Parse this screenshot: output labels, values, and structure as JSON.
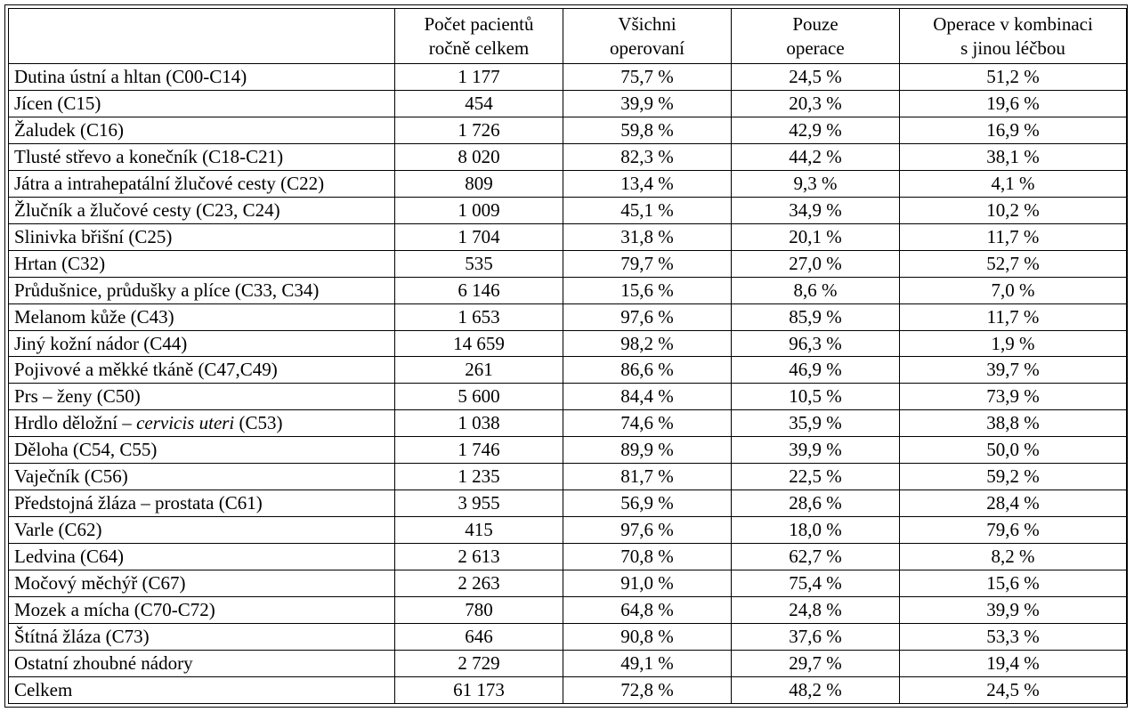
{
  "headers": [
    {
      "lines": [
        ""
      ]
    },
    {
      "lines": [
        "Počet pacientů",
        "ročně celkem"
      ]
    },
    {
      "lines": [
        "Všichni",
        "operovaní"
      ]
    },
    {
      "lines": [
        "Pouze",
        "operace"
      ]
    },
    {
      "lines": [
        "Operace v kombinaci",
        "s jinou léčbou"
      ]
    }
  ],
  "rows": [
    {
      "name": "Dutina ústní a hltan (C00-C14)",
      "patients": "1 177",
      "all_operated": "75,7 %",
      "surgery_only": "24,5 %",
      "combined": "51,2 %"
    },
    {
      "name": "Jícen (C15)",
      "patients": "454",
      "all_operated": "39,9 %",
      "surgery_only": "20,3 %",
      "combined": "19,6 %"
    },
    {
      "name": "Žaludek (C16)",
      "patients": "1 726",
      "all_operated": "59,8 %",
      "surgery_only": "42,9 %",
      "combined": "16,9 %"
    },
    {
      "name": "Tlusté střevo a konečník (C18-C21)",
      "patients": "8 020",
      "all_operated": "82,3 %",
      "surgery_only": "44,2 %",
      "combined": "38,1 %"
    },
    {
      "name": "Játra a intrahepatální žlučové cesty (C22)",
      "patients": "809",
      "all_operated": "13,4 %",
      "surgery_only": "9,3 %",
      "combined": "4,1 %"
    },
    {
      "name": "Žlučník a žlučové cesty (C23, C24)",
      "patients": "1 009",
      "all_operated": "45,1 %",
      "surgery_only": "34,9 %",
      "combined": "10,2 %"
    },
    {
      "name": "Slinivka břišní (C25)",
      "patients": "1 704",
      "all_operated": "31,8 %",
      "surgery_only": "20,1 %",
      "combined": "11,7 %"
    },
    {
      "name": "Hrtan (C32)",
      "patients": "535",
      "all_operated": "79,7 %",
      "surgery_only": "27,0 %",
      "combined": "52,7 %"
    },
    {
      "name": "Průdušnice, průdušky a plíce (C33, C34)",
      "patients": "6 146",
      "all_operated": "15,6 %",
      "surgery_only": "8,6 %",
      "combined": "7,0 %"
    },
    {
      "name": "Melanom kůže (C43)",
      "patients": "1 653",
      "all_operated": "97,6 %",
      "surgery_only": "85,9 %",
      "combined": "11,7 %"
    },
    {
      "name": "Jiný kožní nádor (C44)",
      "patients": "14 659",
      "all_operated": "98,2 %",
      "surgery_only": "96,3 %",
      "combined": "1,9 %"
    },
    {
      "name": "Pojivové a měkké tkáně (C47,C49)",
      "patients": "261",
      "all_operated": "86,6 %",
      "surgery_only": "46,9 %",
      "combined": "39,7 %"
    },
    {
      "name": "Prs – ženy (C50)",
      "patients": "5 600",
      "all_operated": "84,4 %",
      "surgery_only": "10,5 %",
      "combined": "73,9 %"
    },
    {
      "name_before": "Hrdlo děložní – ",
      "name_italic": "cervicis uteri",
      "name_after": " (C53)",
      "patients": "1 038",
      "all_operated": "74,6 %",
      "surgery_only": "35,9 %",
      "combined": "38,8 %"
    },
    {
      "name": "Děloha (C54, C55)",
      "patients": "1 746",
      "all_operated": "89,9 %",
      "surgery_only": "39,9 %",
      "combined": "50,0 %"
    },
    {
      "name": "Vaječník (C56)",
      "patients": "1 235",
      "all_operated": "81,7 %",
      "surgery_only": "22,5 %",
      "combined": "59,2 %"
    },
    {
      "name": "Předstojná žláza – prostata (C61)",
      "patients": "3 955",
      "all_operated": "56,9 %",
      "surgery_only": "28,6 %",
      "combined": "28,4 %"
    },
    {
      "name": "Varle (C62)",
      "patients": "415",
      "all_operated": "97,6 %",
      "surgery_only": "18,0 %",
      "combined": "79,6 %"
    },
    {
      "name": "Ledvina (C64)",
      "patients": "2 613",
      "all_operated": "70,8 %",
      "surgery_only": "62,7 %",
      "combined": "8,2 %"
    },
    {
      "name": "Močový měchýř (C67)",
      "patients": "2 263",
      "all_operated": "91,0 %",
      "surgery_only": "75,4 %",
      "combined": "15,6 %"
    },
    {
      "name": "Mozek a mícha (C70-C72)",
      "patients": "780",
      "all_operated": "64,8 %",
      "surgery_only": "24,8 %",
      "combined": "39,9 %"
    },
    {
      "name": "Štítná žláza (C73)",
      "patients": "646",
      "all_operated": "90,8 %",
      "surgery_only": "37,6 %",
      "combined": "53,3 %"
    },
    {
      "name": "Ostatní zhoubné nádory",
      "patients": "2 729",
      "all_operated": "49,1 %",
      "surgery_only": "29,7 %",
      "combined": "19,4 %"
    },
    {
      "name": "Celkem",
      "patients": "61 173",
      "all_operated": "72,8 %",
      "surgery_only": "48,2 %",
      "combined": "24,5 %"
    }
  ]
}
